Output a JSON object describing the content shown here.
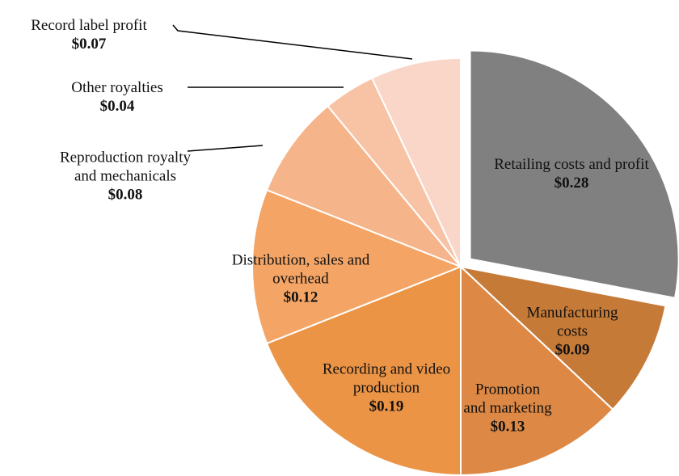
{
  "chart_data": {
    "type": "pie",
    "categories": [
      "Retailing costs and profit",
      "Manufacturing costs",
      "Promotion and marketing",
      "Recording and video production",
      "Distribution, sales and overhead",
      "Reproduction royalty and mechanicals",
      "Other royalties",
      "Record label profit"
    ],
    "values": [
      0.28,
      0.09,
      0.13,
      0.19,
      0.12,
      0.08,
      0.04,
      0.07
    ],
    "value_labels": [
      "$0.28",
      "$0.09",
      "$0.13",
      "$0.19",
      "$0.12",
      "$0.08",
      "$0.04",
      "$0.07"
    ],
    "colors": [
      "#808080",
      "#c57a38",
      "#dd8844",
      "#ec9446",
      "#f4a566",
      "#f6b48a",
      "#f7c3a4",
      "#f9d6c8"
    ]
  }
}
